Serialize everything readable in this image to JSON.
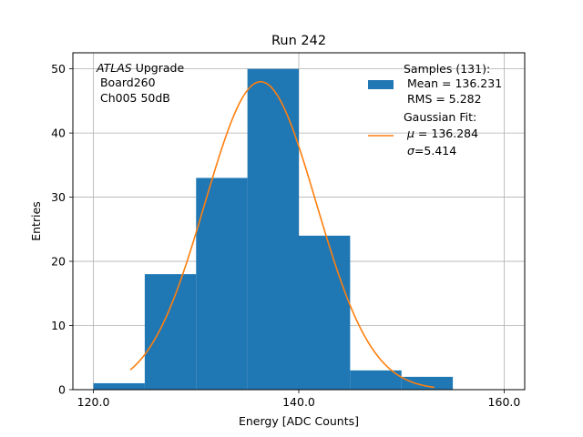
{
  "chart_data": {
    "type": "bar",
    "title": "Run 242",
    "xlabel": "Energy [ADC Counts]",
    "ylabel": "Entries",
    "xlim": [
      118,
      162
    ],
    "ylim": [
      0,
      52.5
    ],
    "xticks": [
      120,
      140,
      160
    ],
    "xtick_labels": [
      "120.0",
      "140.0",
      "160.0"
    ],
    "yticks": [
      0,
      10,
      20,
      30,
      40,
      50
    ],
    "ytick_labels": [
      "0",
      "10",
      "20",
      "30",
      "40",
      "50"
    ],
    "grid": true,
    "legend_placement": "top-right",
    "annotation": {
      "italic": "ATLAS",
      "rest": " Upgrade",
      "line2": " Board260",
      "line3": " Ch005 50dB"
    },
    "histogram": {
      "name_lines": [
        "Samples (131):",
        " Mean = 136.231",
        " RMS = 5.282"
      ],
      "color": "#1f77b4",
      "bins": [
        {
          "x0": 120,
          "x1": 125,
          "count": 1
        },
        {
          "x0": 125,
          "x1": 130,
          "count": 18
        },
        {
          "x0": 130,
          "x1": 135,
          "count": 33
        },
        {
          "x0": 135,
          "x1": 140,
          "count": 50
        },
        {
          "x0": 140,
          "x1": 145,
          "count": 24
        },
        {
          "x0": 145,
          "x1": 150,
          "count": 3
        },
        {
          "x0": 150,
          "x1": 155,
          "count": 2
        }
      ]
    },
    "fit": {
      "name_line1": "Gaussian Fit:",
      "mu_symbol": "μ",
      "mu_text": " = 136.284",
      "sigma_symbol": "σ",
      "sigma_text": "=5.414",
      "color": "#ff7f0e",
      "amplitude": 48,
      "mu": 136.284,
      "sigma": 5.414,
      "x_range": [
        123.6,
        153.2
      ]
    }
  }
}
